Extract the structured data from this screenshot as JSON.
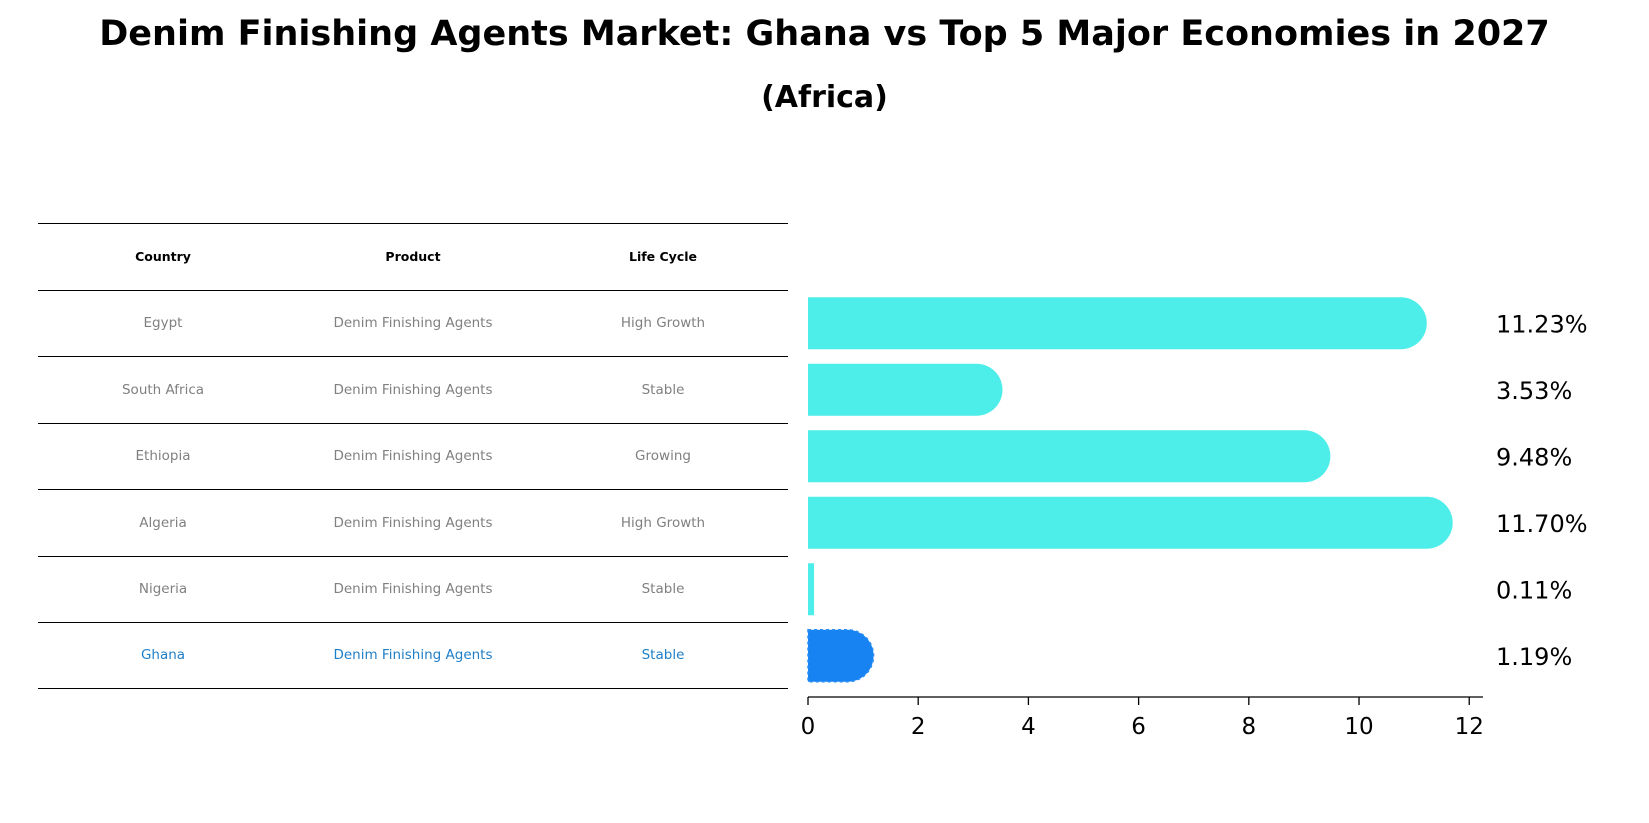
{
  "chart_data": {
    "type": "bar",
    "orientation": "horizontal",
    "title": "Denim Finishing Agents Market: Ghana vs Top 5 Major Economies in 2027",
    "subtitle": "(Africa)",
    "table": {
      "columns": [
        "Country",
        "Product",
        "Life Cycle"
      ],
      "rows": [
        {
          "country": "Egypt",
          "product": "Denim Finishing Agents",
          "life_cycle": "High Growth"
        },
        {
          "country": "South Africa",
          "product": "Denim Finishing Agents",
          "life_cycle": "Stable"
        },
        {
          "country": "Ethiopia",
          "product": "Denim Finishing Agents",
          "life_cycle": "Growing"
        },
        {
          "country": "Algeria",
          "product": "Denim Finishing Agents",
          "life_cycle": "High Growth"
        },
        {
          "country": "Nigeria",
          "product": "Denim Finishing Agents",
          "life_cycle": "Stable"
        },
        {
          "country": "Ghana",
          "product": "Denim Finishing Agents",
          "life_cycle": "Stable"
        }
      ]
    },
    "categories": [
      "Egypt",
      "South Africa",
      "Ethiopia",
      "Algeria",
      "Nigeria",
      "Ghana"
    ],
    "values": [
      11.23,
      3.53,
      9.48,
      11.7,
      0.11,
      1.19
    ],
    "value_labels": [
      "11.23%",
      "3.53%",
      "9.48%",
      "11.70%",
      "0.11%",
      "1.19%"
    ],
    "highlight": "Ghana",
    "xlim": [
      0,
      12.25
    ],
    "xticks": [
      0,
      2,
      4,
      6,
      8,
      10,
      12
    ],
    "colors": {
      "bar": "#4deeea",
      "highlight": "#1783f2",
      "highlight_text": "#1f7fc8"
    }
  }
}
